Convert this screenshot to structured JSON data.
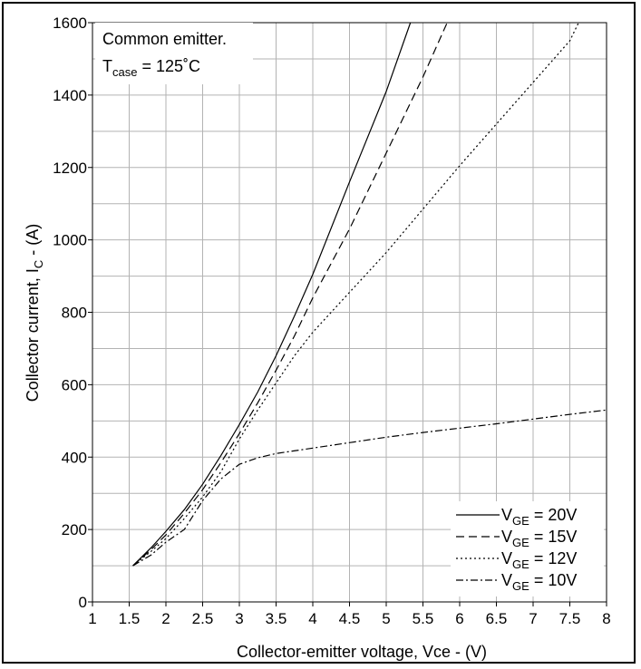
{
  "chart_data": {
    "type": "line",
    "title": "",
    "xlabel": "Collector-emitter voltage, Vce - (V)",
    "ylabel": {
      "main": "Collector current, I",
      "sub": "C",
      "tail": " - (A)"
    },
    "xlim": [
      1,
      8
    ],
    "ylim": [
      0,
      1600
    ],
    "x_ticks": [
      "1",
      "1.5",
      "2",
      "2.5",
      "3",
      "3.5",
      "4",
      "4.5",
      "5",
      "5.5",
      "6",
      "6.5",
      "7",
      "7.5",
      "8"
    ],
    "y_ticks": [
      "0",
      "200",
      "400",
      "600",
      "800",
      "1000",
      "1200",
      "1400",
      "1600"
    ],
    "grid": true,
    "annotation": {
      "line1": "Common emitter.",
      "line2_main": "T",
      "line2_sub": "case",
      "line2_tail": " = 125˚C"
    },
    "legend_position": "bottom-right",
    "series": [
      {
        "name_main": "V",
        "name_sub": "GE",
        "name_tail": " = 20V",
        "style": "solid",
        "points": [
          [
            1.55,
            100
          ],
          [
            1.8,
            150
          ],
          [
            2.0,
            195
          ],
          [
            2.25,
            255
          ],
          [
            2.5,
            325
          ],
          [
            2.75,
            405
          ],
          [
            3.0,
            490
          ],
          [
            3.25,
            580
          ],
          [
            3.5,
            680
          ],
          [
            3.75,
            790
          ],
          [
            4.0,
            905
          ],
          [
            4.5,
            1160
          ],
          [
            5.0,
            1410
          ],
          [
            5.33,
            1600
          ]
        ]
      },
      {
        "name_main": "V",
        "name_sub": "GE",
        "name_tail": " = 15V",
        "style": "dashed",
        "points": [
          [
            1.55,
            100
          ],
          [
            1.8,
            145
          ],
          [
            2.0,
            185
          ],
          [
            2.25,
            245
          ],
          [
            2.5,
            310
          ],
          [
            2.75,
            385
          ],
          [
            3.0,
            465
          ],
          [
            3.25,
            550
          ],
          [
            3.5,
            640
          ],
          [
            3.75,
            735
          ],
          [
            4.0,
            840
          ],
          [
            4.5,
            1030
          ],
          [
            5.0,
            1240
          ],
          [
            5.5,
            1450
          ],
          [
            5.83,
            1600
          ]
        ]
      },
      {
        "name_main": "V",
        "name_sub": "GE",
        "name_tail": " = 12V",
        "style": "dotted",
        "points": [
          [
            1.55,
            100
          ],
          [
            1.8,
            140
          ],
          [
            2.0,
            175
          ],
          [
            2.25,
            230
          ],
          [
            2.5,
            290
          ],
          [
            2.75,
            360
          ],
          [
            3.0,
            450
          ],
          [
            3.25,
            530
          ],
          [
            3.5,
            605
          ],
          [
            3.75,
            680
          ],
          [
            4.0,
            745
          ],
          [
            4.5,
            855
          ],
          [
            5.0,
            965
          ],
          [
            5.5,
            1085
          ],
          [
            6.0,
            1205
          ],
          [
            6.5,
            1320
          ],
          [
            7.0,
            1435
          ],
          [
            7.5,
            1550
          ],
          [
            7.62,
            1600
          ]
        ]
      },
      {
        "name_main": "V",
        "name_sub": "GE",
        "name_tail": " = 10V",
        "style": "dashdot",
        "points": [
          [
            1.55,
            100
          ],
          [
            1.8,
            130
          ],
          [
            2.0,
            165
          ],
          [
            2.25,
            200
          ],
          [
            2.5,
            280
          ],
          [
            2.75,
            340
          ],
          [
            3.0,
            380
          ],
          [
            3.25,
            398
          ],
          [
            3.5,
            410
          ],
          [
            4.0,
            425
          ],
          [
            4.5,
            440
          ],
          [
            5.0,
            455
          ],
          [
            5.5,
            468
          ],
          [
            6.0,
            480
          ],
          [
            6.5,
            492
          ],
          [
            7.0,
            505
          ],
          [
            7.5,
            518
          ],
          [
            8.0,
            530
          ]
        ]
      }
    ]
  }
}
